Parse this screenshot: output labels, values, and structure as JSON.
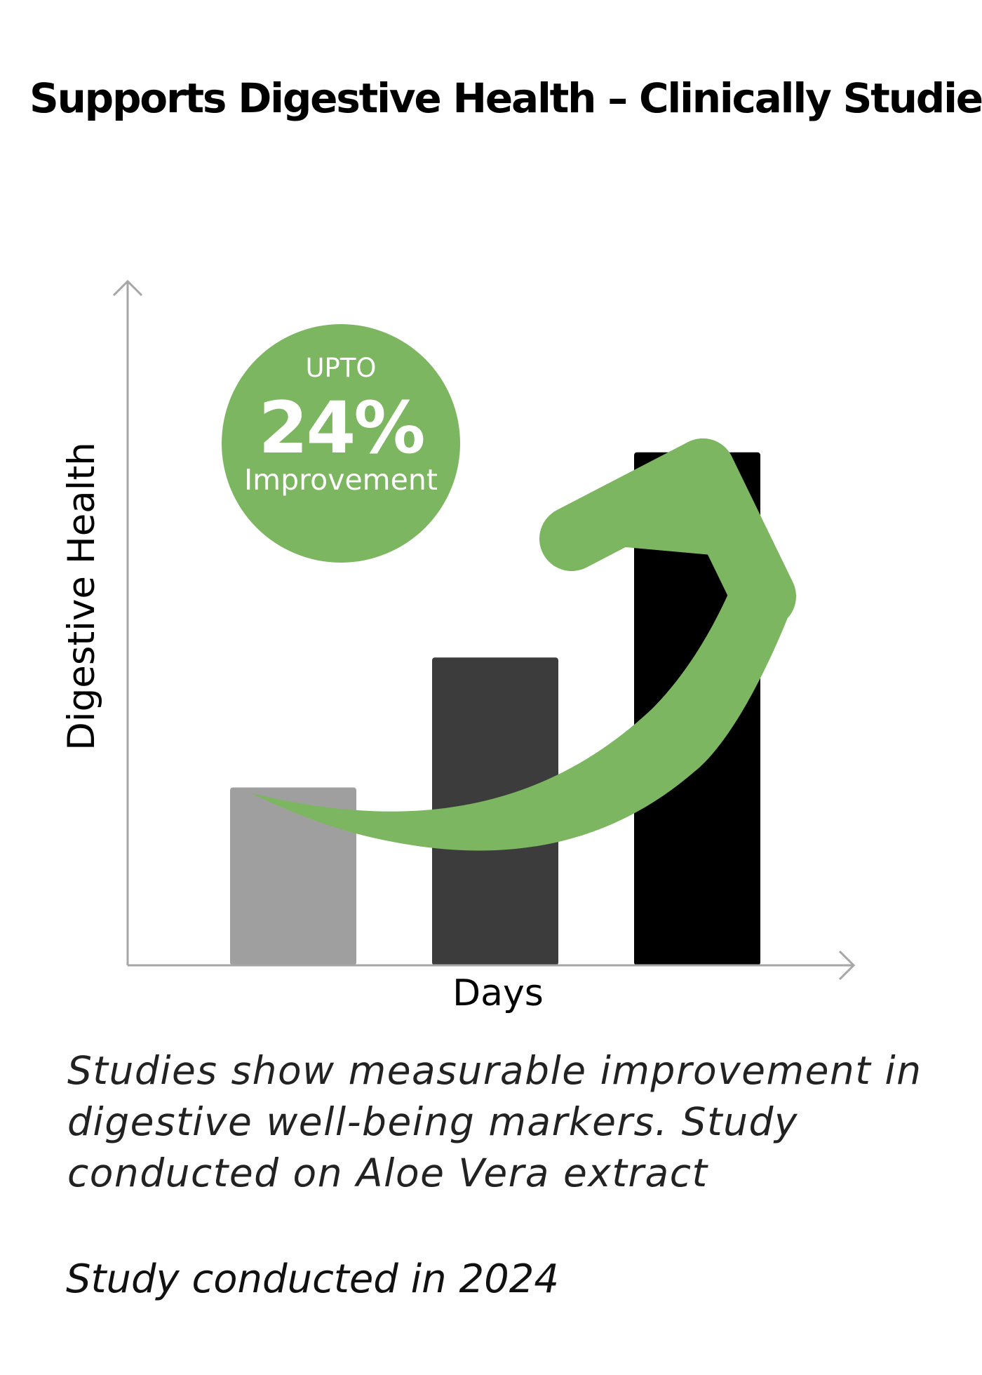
{
  "title": "Supports Digestive Health – Clinically Studied",
  "badge": {
    "top_text": "UPTO",
    "value_text": "24%",
    "bottom_text": "Improvement"
  },
  "caption": "Studies show measurable improvement in digestive well-being markers. Study conducted on Aloe Vera extract",
  "study_year_text": "Study conducted in 2024",
  "colors": {
    "accent_green": "#7cb661",
    "axis": "#a6a6a6",
    "bar_1": "#9f9f9f",
    "bar_2": "#3c3c3c",
    "bar_3": "#000000"
  },
  "icon": "trend-up-arrow-icon",
  "chart_data": {
    "type": "bar",
    "title": "",
    "xlabel": "Days",
    "ylabel": "Digestive Health",
    "categories": [
      "",
      "",
      ""
    ],
    "values": [
      26,
      45,
      75
    ],
    "ylim": [
      0,
      100
    ],
    "grid": false,
    "legend": "none",
    "annotations": [
      "UPTO",
      "24%",
      "Improvement"
    ]
  }
}
